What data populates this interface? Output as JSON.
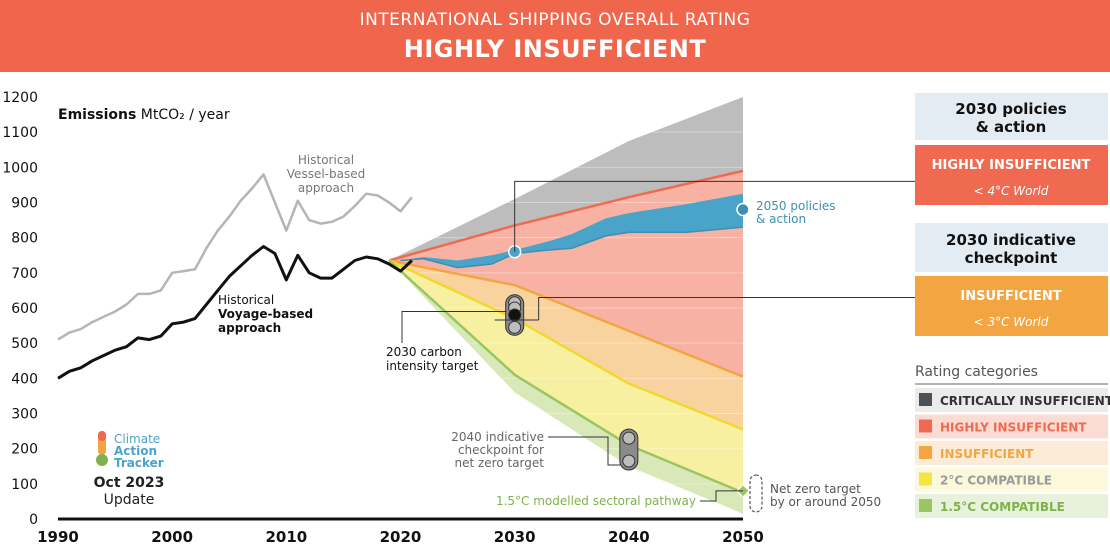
{
  "header": {
    "subtitle": "INTERNATIONAL SHIPPING OVERALL RATING",
    "title": "HIGHLY INSUFFICIENT"
  },
  "colors": {
    "banner": "#f0664c",
    "critically": "#4b5157",
    "highly": "#ef6a51",
    "insufficient": "#f2a541",
    "two_c": "#f4e642",
    "one_five": "#9ac562",
    "policies": "#4aa3c8",
    "historical_vessel": "#b5b5b5",
    "historical_voyage": "#111111"
  },
  "right_panel": {
    "policies_title": "2030 policies\n& action",
    "policies_rating": "HIGHLY INSUFFICIENT",
    "policies_world": "< 4°C World",
    "checkpoint_title": "2030 indicative\ncheckpoint",
    "checkpoint_rating": "INSUFFICIENT",
    "checkpoint_world": "< 3°C World"
  },
  "legend": {
    "title": "Rating categories",
    "items": [
      {
        "label": "CRITICALLY INSUFFICIENT",
        "key": "critically"
      },
      {
        "label": "HIGHLY INSUFFICIENT",
        "key": "highly"
      },
      {
        "label": "INSUFFICIENT",
        "key": "insufficient"
      },
      {
        "label": "2°C COMPATIBLE",
        "key": "two_c"
      },
      {
        "label": "1.5°C COMPATIBLE",
        "key": "one_five"
      }
    ]
  },
  "logo": {
    "line1": "Climate",
    "line2": "Action",
    "line3": "Tracker",
    "date": "Oct 2023",
    "update": "Update"
  },
  "chart_data": {
    "type": "area",
    "ylabel_bold": "Emissions",
    "ylabel_rest": "MtCO₂ / year",
    "xlim": [
      1990,
      2050
    ],
    "ylim": [
      0,
      1200
    ],
    "x_ticks": [
      1990,
      2000,
      2010,
      2020,
      2030,
      2040,
      2050
    ],
    "y_ticks": [
      0,
      100,
      200,
      300,
      400,
      500,
      600,
      700,
      800,
      900,
      1000,
      1100,
      1200
    ],
    "historical_vessel": {
      "label": "Historical\nVessel-based\napproach",
      "x": [
        1990,
        1991,
        1992,
        1993,
        1994,
        1995,
        1996,
        1997,
        1998,
        1999,
        2000,
        2001,
        2002,
        2003,
        2004,
        2005,
        2006,
        2007,
        2008,
        2009,
        2010,
        2011,
        2012,
        2013,
        2014,
        2015,
        2016,
        2017,
        2018,
        2019,
        2020,
        2021
      ],
      "y": [
        510,
        530,
        540,
        560,
        575,
        590,
        610,
        640,
        640,
        650,
        700,
        705,
        710,
        770,
        820,
        860,
        905,
        940,
        980,
        900,
        820,
        905,
        850,
        840,
        845,
        860,
        890,
        925,
        920,
        900,
        875,
        915
      ]
    },
    "historical_voyage": {
      "label_line1": "Historical",
      "label_line2": "Voyage-based",
      "label_line3": "approach",
      "x": [
        1990,
        1991,
        1992,
        1993,
        1994,
        1995,
        1996,
        1997,
        1998,
        1999,
        2000,
        2001,
        2002,
        2003,
        2004,
        2005,
        2006,
        2007,
        2008,
        2009,
        2010,
        2011,
        2012,
        2013,
        2014,
        2015,
        2016,
        2017,
        2018,
        2019,
        2020,
        2021
      ],
      "y": [
        400,
        420,
        430,
        450,
        465,
        480,
        490,
        515,
        510,
        520,
        555,
        560,
        570,
        610,
        650,
        690,
        720,
        750,
        775,
        755,
        680,
        750,
        700,
        685,
        685,
        710,
        735,
        745,
        740,
        725,
        705,
        735
      ]
    },
    "boundaries": {
      "x": [
        2019,
        2030,
        2040,
        2050
      ],
      "critically_top": [
        735,
        910,
        1075,
        1200
      ],
      "highly_top": [
        735,
        835,
        915,
        990
      ],
      "insufficient_top": [
        735,
        665,
        535,
        405
      ],
      "two_c_top": [
        735,
        570,
        385,
        255
      ],
      "one_five_top": [
        735,
        410,
        210,
        75
      ],
      "one_five_bottom": [
        735,
        360,
        150,
        15
      ]
    },
    "policies_band": {
      "x": [
        2020,
        2022,
        2025,
        2028,
        2030,
        2033,
        2035,
        2038,
        2040,
        2045,
        2050
      ],
      "upper": [
        735,
        745,
        735,
        750,
        765,
        790,
        810,
        855,
        870,
        895,
        925
      ],
      "lower": [
        735,
        740,
        715,
        725,
        755,
        765,
        770,
        805,
        815,
        815,
        830
      ]
    },
    "policies_marker": {
      "x": 2030,
      "y": 760
    },
    "policies_2050_marker": {
      "x": 2050,
      "y": 880
    },
    "policies_2050_label": "2050 policies\n& action",
    "checkpoint_2030": {
      "x": 2030,
      "values": [
        615,
        600,
        580,
        545
      ]
    },
    "carbon_intensity_label": "2030 carbon\nintensity target",
    "checkpoint_2040": {
      "x": 2040,
      "values": [
        230,
        165
      ],
      "label": "2040 indicative\ncheckpoint for\nnet zero target"
    },
    "pathway_label": "1.5°C modelled sectoral pathway",
    "pathway_marker": {
      "x": 2050,
      "y": 80
    },
    "net_zero_label": "Net zero target\nby or around 2050"
  }
}
